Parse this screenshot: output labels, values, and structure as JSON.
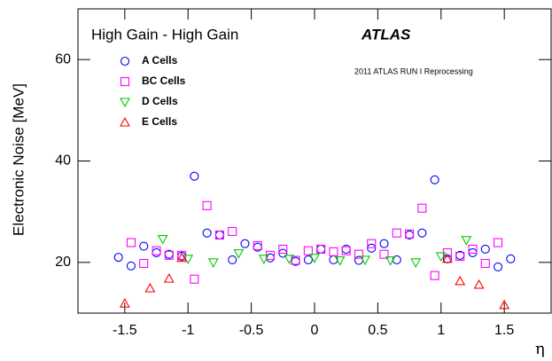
{
  "chart_data": {
    "type": "scatter",
    "title": "High Gain - High Gain",
    "experiment": "ATLAS",
    "subtitle": "2011 ATLAS RUN I Reprocessing",
    "ylabel": "Electronic Noise [MeV]",
    "xlabel": "η",
    "xlim": [
      -1.87,
      1.87
    ],
    "ylim": [
      10,
      70
    ],
    "xticks": [
      -1.5,
      -1,
      -0.5,
      0,
      0.5,
      1,
      1.5
    ],
    "yticks": [
      20,
      40,
      60
    ],
    "legend": "upper-left",
    "series": [
      {
        "name": "A Cells",
        "color": "#0000ff",
        "marker": "circle",
        "x": [
          -1.55,
          -1.45,
          -1.35,
          -1.25,
          -1.15,
          -1.05,
          -0.95,
          -0.85,
          -0.75,
          -0.65,
          -0.55,
          -0.45,
          -0.35,
          -0.25,
          -0.15,
          -0.05,
          0.05,
          0.15,
          0.25,
          0.35,
          0.45,
          0.55,
          0.65,
          0.75,
          0.85,
          0.95,
          1.05,
          1.15,
          1.25,
          1.35,
          1.45,
          1.55
        ],
        "values": [
          21.0,
          19.3,
          23.2,
          21.9,
          21.6,
          21.2,
          37.0,
          25.8,
          25.4,
          20.5,
          23.7,
          23.0,
          20.9,
          21.8,
          20.2,
          20.5,
          22.6,
          20.5,
          22.6,
          20.4,
          22.8,
          23.7,
          20.5,
          25.4,
          25.8,
          36.3,
          20.7,
          21.4,
          21.9,
          22.6,
          19.1,
          20.7
        ]
      },
      {
        "name": "BC Cells",
        "color": "#ff00ff",
        "marker": "square",
        "x": [
          -1.45,
          -1.35,
          -1.25,
          -1.15,
          -1.05,
          -0.95,
          -0.85,
          -0.75,
          -0.65,
          -0.45,
          -0.35,
          -0.25,
          -0.15,
          -0.05,
          0.05,
          0.15,
          0.25,
          0.35,
          0.45,
          0.55,
          0.65,
          0.75,
          0.85,
          0.95,
          1.05,
          1.15,
          1.25,
          1.35,
          1.45
        ],
        "values": [
          23.9,
          19.8,
          22.3,
          21.4,
          21.4,
          16.7,
          31.2,
          25.4,
          26.1,
          23.3,
          21.4,
          22.6,
          20.4,
          22.3,
          22.6,
          22.1,
          22.3,
          21.6,
          23.7,
          21.6,
          25.8,
          25.6,
          30.7,
          17.4,
          21.9,
          21.2,
          22.6,
          19.8,
          23.9
        ]
      },
      {
        "name": "D Cells",
        "color": "#00cc00",
        "marker": "triangle-down",
        "x": [
          -1.2,
          -1.0,
          -0.8,
          -0.6,
          -0.4,
          -0.2,
          0,
          0.2,
          0.4,
          0.6,
          0.8,
          1.0,
          1.2
        ],
        "values": [
          24.6,
          20.7,
          20.0,
          21.8,
          20.7,
          20.7,
          20.9,
          20.4,
          20.5,
          20.4,
          20.0,
          21.2,
          24.4
        ]
      },
      {
        "name": "E Cells",
        "color": "#ff0000",
        "marker": "triangle-up",
        "x": [
          -1.5,
          -1.3,
          -1.15,
          -1.05,
          1.05,
          1.15,
          1.3,
          1.5
        ],
        "values": [
          11.9,
          14.9,
          16.8,
          20.9,
          20.7,
          16.3,
          15.6,
          11.6
        ]
      }
    ]
  }
}
